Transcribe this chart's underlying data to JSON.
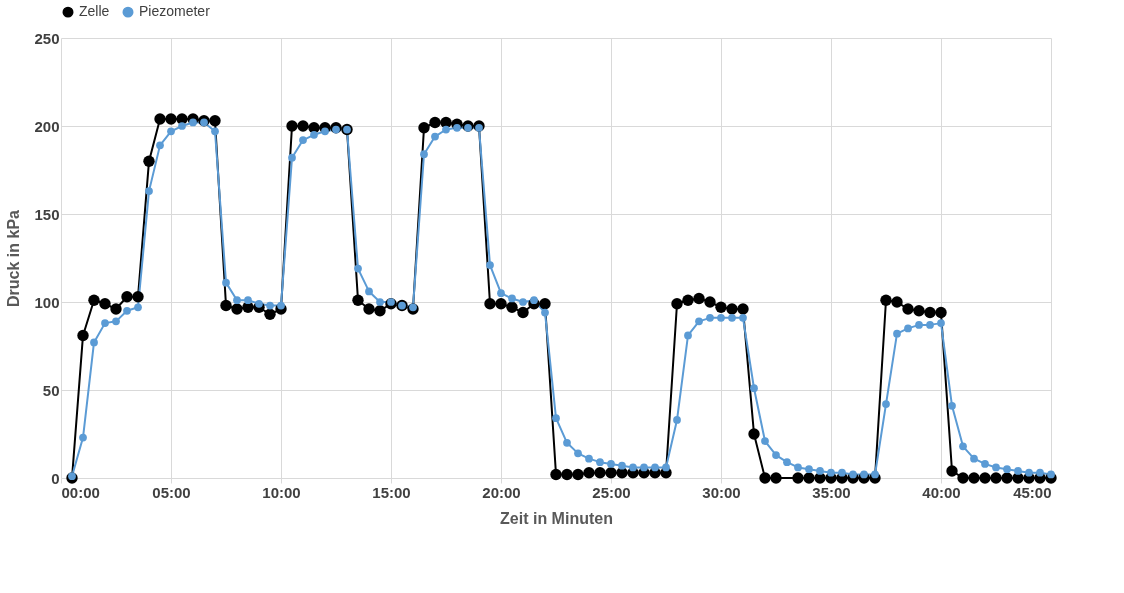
{
  "chart_data": {
    "type": "line",
    "xlabel": "Zeit in Minuten",
    "ylabel": "Druck in kPa",
    "xlim": [
      0,
      45
    ],
    "xticks": [
      {
        "value": 0,
        "label": "00:00"
      },
      {
        "value": 5,
        "label": "05:00"
      },
      {
        "value": 10,
        "label": "10:00"
      },
      {
        "value": 15,
        "label": "15:00"
      },
      {
        "value": 20,
        "label": "20:00"
      },
      {
        "value": 25,
        "label": "25:00"
      },
      {
        "value": 30,
        "label": "30:00"
      },
      {
        "value": 35,
        "label": "35:00"
      },
      {
        "value": 40,
        "label": "40:00"
      },
      {
        "value": 45,
        "label": "45:00"
      }
    ],
    "ylim": [
      0,
      250
    ],
    "yticks": [
      0,
      50,
      100,
      150,
      200,
      250
    ],
    "grid": true,
    "legend": "top",
    "marker": "circle",
    "line_style": "solid",
    "x": [
      0.5,
      1,
      1.5,
      2,
      2.5,
      3,
      3.5,
      4,
      4.5,
      5,
      5.5,
      6,
      6.5,
      7,
      7.5,
      8,
      8.5,
      9,
      9.5,
      10,
      10.5,
      11,
      11.5,
      12,
      12.5,
      13,
      13.5,
      14,
      14.5,
      15,
      15.5,
      16,
      16.5,
      17,
      17.5,
      18,
      18.5,
      19,
      19.5,
      20,
      20.5,
      21,
      21.5,
      22,
      22.5,
      23,
      23.5,
      24,
      24.5,
      25,
      25.5,
      26,
      26.5,
      27,
      27.5,
      28,
      28.5,
      29,
      29.5,
      30,
      30.5,
      31,
      31.5,
      32,
      32.5,
      33,
      33.5,
      34,
      34.5,
      35,
      35.5,
      36,
      36.5,
      37,
      37.5,
      38,
      38.5,
      39,
      39.5,
      40,
      40.5,
      41,
      41.5,
      42,
      42.5,
      43,
      43.5,
      44,
      44.5,
      45
    ],
    "series": [
      {
        "name": "Zelle",
        "color": "#000000",
        "x": [
          0.5,
          1,
          1.5,
          2,
          2.5,
          3,
          3.5,
          4,
          4.5,
          5,
          5.5,
          6,
          6.5,
          7,
          7.5,
          8,
          8.5,
          9,
          9.5,
          10,
          10.5,
          11,
          11.5,
          12,
          12.5,
          13,
          13.5,
          14,
          14.5,
          15,
          15.5,
          16,
          16.5,
          17,
          17.5,
          18,
          18.5,
          19,
          19.5,
          20,
          20.5,
          21,
          21.5,
          22,
          22.5,
          23,
          23.5,
          24,
          24.5,
          25,
          25.5,
          26,
          26.5,
          27,
          27.5,
          28,
          28.5,
          29,
          29.5,
          30,
          30.5,
          31,
          31.5,
          32,
          32.5,
          33.5,
          34,
          34.5,
          35,
          35.5,
          36,
          36.5,
          37,
          37.5,
          38,
          38.5,
          39,
          39.5,
          40,
          40.5,
          41,
          41.5,
          42,
          42.5,
          43,
          43.5,
          44,
          44.5,
          45
        ],
        "values": [
          0,
          81,
          101,
          99,
          96,
          103,
          103,
          180,
          204,
          204,
          204,
          204,
          203,
          203,
          98,
          96,
          97,
          97,
          93,
          96,
          200,
          200,
          199,
          199,
          199,
          198,
          101,
          96,
          95,
          99,
          98,
          96,
          199,
          202,
          202,
          201,
          200,
          200,
          99,
          99,
          97,
          94,
          99,
          99,
          2,
          2,
          2,
          3,
          3,
          3,
          3,
          3,
          3,
          3,
          3,
          99,
          101,
          102,
          100,
          97,
          96,
          96,
          25,
          0,
          0,
          0,
          0,
          0,
          0,
          0,
          0,
          0,
          0,
          101,
          100,
          96,
          95,
          94,
          94,
          4,
          0,
          0,
          0,
          0,
          0,
          0,
          0,
          0,
          0
        ]
      },
      {
        "name": "Piezometer",
        "color": "#5b9bd5",
        "values": [
          1,
          23,
          77,
          88,
          89,
          95,
          97,
          163,
          189,
          197,
          200,
          202,
          202,
          197,
          111,
          101,
          101,
          99,
          98,
          98,
          182,
          192,
          195,
          197,
          198,
          198,
          119,
          106,
          100,
          100,
          98,
          97,
          184,
          194,
          198,
          199,
          199,
          199,
          121,
          105,
          102,
          100,
          101,
          94,
          34,
          20,
          14,
          11,
          9,
          8,
          7,
          6,
          6,
          6,
          6,
          33,
          81,
          89,
          91,
          91,
          91,
          91,
          51,
          21,
          13,
          9,
          6,
          5,
          4,
          3,
          3,
          2,
          2,
          2,
          42,
          82,
          85,
          87,
          87,
          88,
          41,
          18,
          11,
          8,
          6,
          5,
          4,
          3,
          3,
          2
        ]
      }
    ]
  }
}
